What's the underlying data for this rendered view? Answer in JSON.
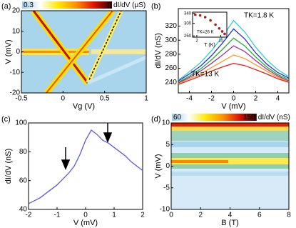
{
  "chart_data": [
    {
      "type": "heatmap",
      "panel_label": "(a)",
      "xlabel": "Vg (V)",
      "ylabel": "V (mV)",
      "xlim": [
        -0.5,
        1
      ],
      "xticks": [
        -0.5,
        0,
        0.5,
        1
      ],
      "ylim": [
        -20,
        20
      ],
      "yticks": [
        -20,
        -10,
        0,
        10,
        20
      ],
      "colorbar": {
        "lim": [
          0.3,
          1
        ],
        "ticks": [
          0.3,
          1
        ],
        "label": "dI/dV (μS)",
        "colors": [
          "#9ccbe8",
          "#ffffff",
          "#ffe800",
          "#ff9000",
          "#e01000",
          "#300000"
        ]
      }
    },
    {
      "type": "line",
      "panel_label": "(b)",
      "xlabel": "V (mV)",
      "ylabel": "dI/dV (nS)",
      "xlim": [
        -5,
        5
      ],
      "xticks": [
        -4,
        -2,
        0,
        2,
        4
      ],
      "ylim": [
        225,
        345
      ],
      "yticks": [
        240,
        260,
        280,
        300,
        320
      ],
      "x": [
        -5,
        -4,
        -3,
        -2,
        -1,
        0,
        1,
        2,
        3,
        4,
        5
      ],
      "series": [
        {
          "color": "#33cccc",
          "values": [
            243,
            255,
            268,
            285,
            305,
            328,
            312,
            290,
            272,
            258,
            248
          ]
        },
        {
          "color": "#2233cc",
          "values": [
            242,
            252,
            263,
            278,
            296,
            316,
            302,
            282,
            266,
            254,
            246
          ]
        },
        {
          "color": "#22aa33",
          "values": [
            240,
            249,
            259,
            272,
            287,
            303,
            292,
            276,
            262,
            251,
            244
          ]
        },
        {
          "color": "#993399",
          "values": [
            239,
            247,
            256,
            267,
            279,
            292,
            284,
            271,
            259,
            249,
            242
          ]
        },
        {
          "color": "#ff9922",
          "values": [
            238,
            245,
            252,
            261,
            270,
            279,
            274,
            265,
            256,
            247,
            241
          ]
        },
        {
          "color": "#dd2222",
          "values": [
            237,
            243,
            249,
            256,
            262,
            267,
            264,
            258,
            252,
            245,
            240
          ]
        }
      ],
      "annotations": [
        {
          "text": "TK=1.8 K",
          "color": "#33cccc"
        },
        {
          "text": "TK=13 K",
          "color": "#dd2222"
        }
      ],
      "inset": {
        "type": "scatter",
        "xlabel": "T (K)",
        "xlog": true,
        "xlim": [
          1.5,
          15
        ],
        "xticks": [
          2,
          10
        ],
        "ylim": [
          245,
          345
        ],
        "yticks": [
          250,
          300,
          340
        ],
        "color": "#992222",
        "x": [
          1.8,
          2.5,
          3.5,
          5,
          7,
          9,
          11,
          13
        ],
        "values": [
          335,
          332,
          325,
          312,
          295,
          280,
          268,
          258
        ],
        "annotations": [
          {
            "text": "TK=26 K",
            "color": "#000000"
          }
        ]
      }
    },
    {
      "type": "line",
      "panel_label": "(c)",
      "xlabel": "V (mV)",
      "ylabel": "dI/dV (nS)",
      "xlim": [
        -2,
        2
      ],
      "xticks": [
        -2,
        -1,
        0,
        1,
        2
      ],
      "ylim": [
        40,
        100
      ],
      "yticks": [
        40,
        60,
        80,
        100
      ],
      "x": [
        -2,
        -1.8,
        -1.6,
        -1.4,
        -1.2,
        -1,
        -0.8,
        -0.6,
        -0.4,
        -0.2,
        0,
        0.2,
        0.4,
        0.6,
        0.8,
        1,
        1.2,
        1.4,
        1.6,
        1.8,
        2
      ],
      "series": [
        {
          "color": "#5a5ae0",
          "values": [
            44,
            46,
            48,
            51,
            54,
            57,
            61,
            65,
            70,
            78,
            88,
            95,
            92,
            88,
            86,
            83,
            80,
            77,
            73,
            70,
            67
          ]
        }
      ]
    },
    {
      "type": "heatmap",
      "panel_label": "(d)",
      "xlabel": "B (T)",
      "ylabel": "V (mV)",
      "xlim": [
        0,
        8
      ],
      "xticks": [
        0,
        2,
        4,
        6,
        8
      ],
      "ylim": [
        -10,
        10
      ],
      "yticks": [
        -10,
        -5,
        0,
        5,
        10
      ],
      "colorbar": {
        "lim": [
          60,
          150
        ],
        "ticks": [
          60,
          150
        ],
        "label": "dI/dV (nS)",
        "colors": [
          "#9ccbe8",
          "#ffffff",
          "#ffe800",
          "#ff9000",
          "#e01000",
          "#300000"
        ]
      }
    }
  ]
}
